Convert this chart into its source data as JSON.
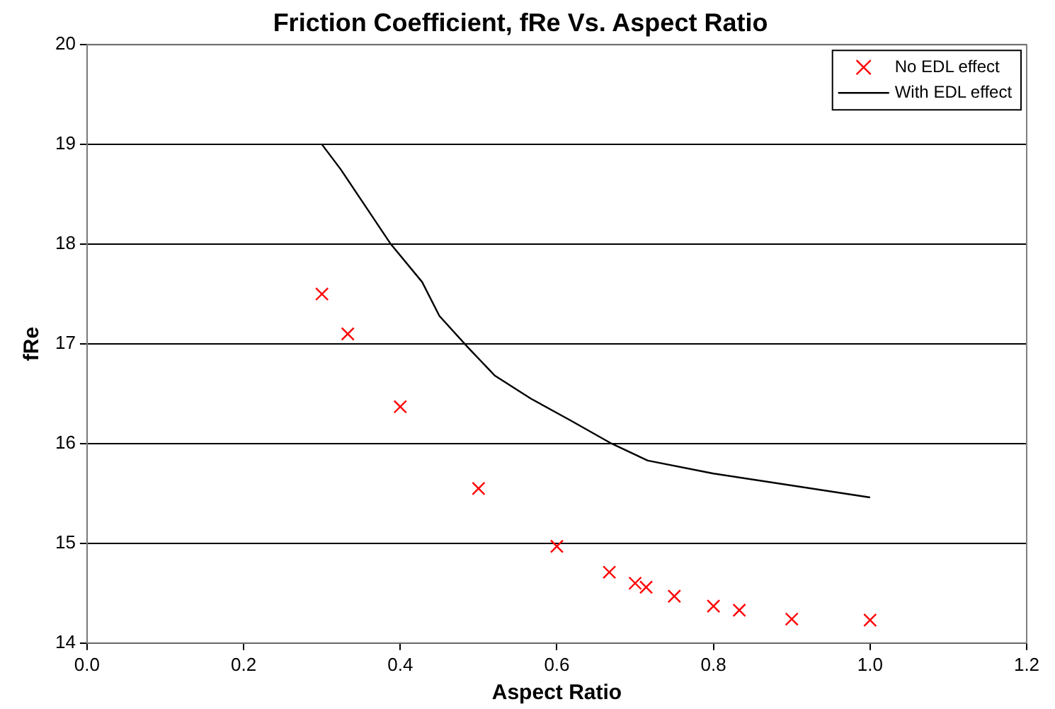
{
  "chart_data": {
    "type": "scatter",
    "title": "Friction Coefficient, fRe Vs. Aspect Ratio",
    "xlabel": "Aspect Ratio",
    "ylabel": "fRe",
    "xlim": [
      0,
      1.2
    ],
    "xticks": [
      {
        "value": 0,
        "label": "0.0"
      },
      {
        "value": 0.2,
        "label": "0.2"
      },
      {
        "value": 0.4,
        "label": "0.4"
      },
      {
        "value": 0.6,
        "label": "0.6"
      },
      {
        "value": 0.8,
        "label": "0.8"
      },
      {
        "value": 1,
        "label": "1.0"
      },
      {
        "value": 1.2,
        "label": "1.2"
      }
    ],
    "ylim": [
      14,
      20
    ],
    "yticks": [
      14,
      15,
      16,
      17,
      18,
      19,
      20
    ],
    "grid": "y",
    "legend": "top right",
    "series": [
      {
        "name": "No EDL effect",
        "marker": "cross",
        "color": "#ff0000",
        "x": [
          0.3,
          0.333,
          0.4,
          0.5,
          0.6,
          0.667,
          0.7,
          0.714,
          0.75,
          0.8,
          0.833,
          0.9,
          1.0
        ],
        "values": [
          17.5,
          17.1,
          16.37,
          15.55,
          14.97,
          14.71,
          14.6,
          14.56,
          14.47,
          14.37,
          14.33,
          14.24,
          14.23
        ]
      },
      {
        "name": "With EDL effect",
        "type": "line",
        "marker": "none",
        "color": "#000000",
        "x": [
          0.3,
          0.324,
          0.388,
          0.428,
          0.45,
          0.487,
          0.521,
          0.567,
          0.618,
          0.67,
          0.716,
          0.8,
          1.0
        ],
        "values": [
          19,
          18.75,
          18.0,
          17.62,
          17.28,
          16.96,
          16.68,
          16.45,
          16.23,
          16.0,
          15.83,
          15.7,
          15.46
        ]
      }
    ]
  }
}
